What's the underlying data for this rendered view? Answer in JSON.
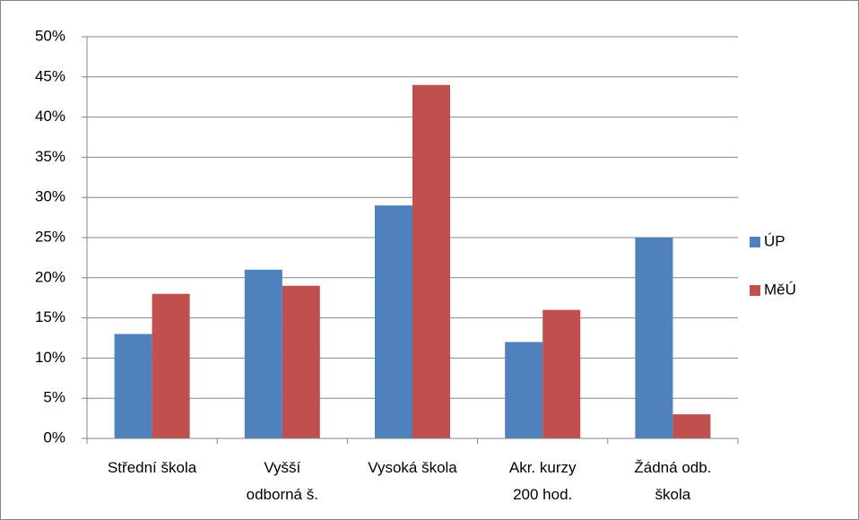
{
  "chart_data": {
    "type": "bar",
    "categories": [
      "Střední škola",
      "Vyšší\nodborná š.",
      "Vysoká škola",
      "Akr. kurzy\n200 hod.",
      "Žádná odb.\nškola"
    ],
    "series": [
      {
        "name": "ÚP",
        "color": "#4f81bd",
        "values": [
          13,
          21,
          29,
          12,
          25
        ]
      },
      {
        "name": "MěÚ",
        "color": "#c0504d",
        "values": [
          18,
          19,
          44,
          16,
          3
        ]
      }
    ],
    "ylim": [
      0,
      50
    ],
    "yticks": [
      {
        "value": 0,
        "label": "0%"
      },
      {
        "value": 5,
        "label": "5%"
      },
      {
        "value": 10,
        "label": "10%"
      },
      {
        "value": 15,
        "label": "15%"
      },
      {
        "value": 20,
        "label": "20%"
      },
      {
        "value": 25,
        "label": "25%"
      },
      {
        "value": 30,
        "label": "30%"
      },
      {
        "value": 35,
        "label": "35%"
      },
      {
        "value": 40,
        "label": "40%"
      },
      {
        "value": 45,
        "label": "45%"
      },
      {
        "value": 50,
        "label": "50%"
      }
    ],
    "grid": true,
    "legend": "right"
  }
}
